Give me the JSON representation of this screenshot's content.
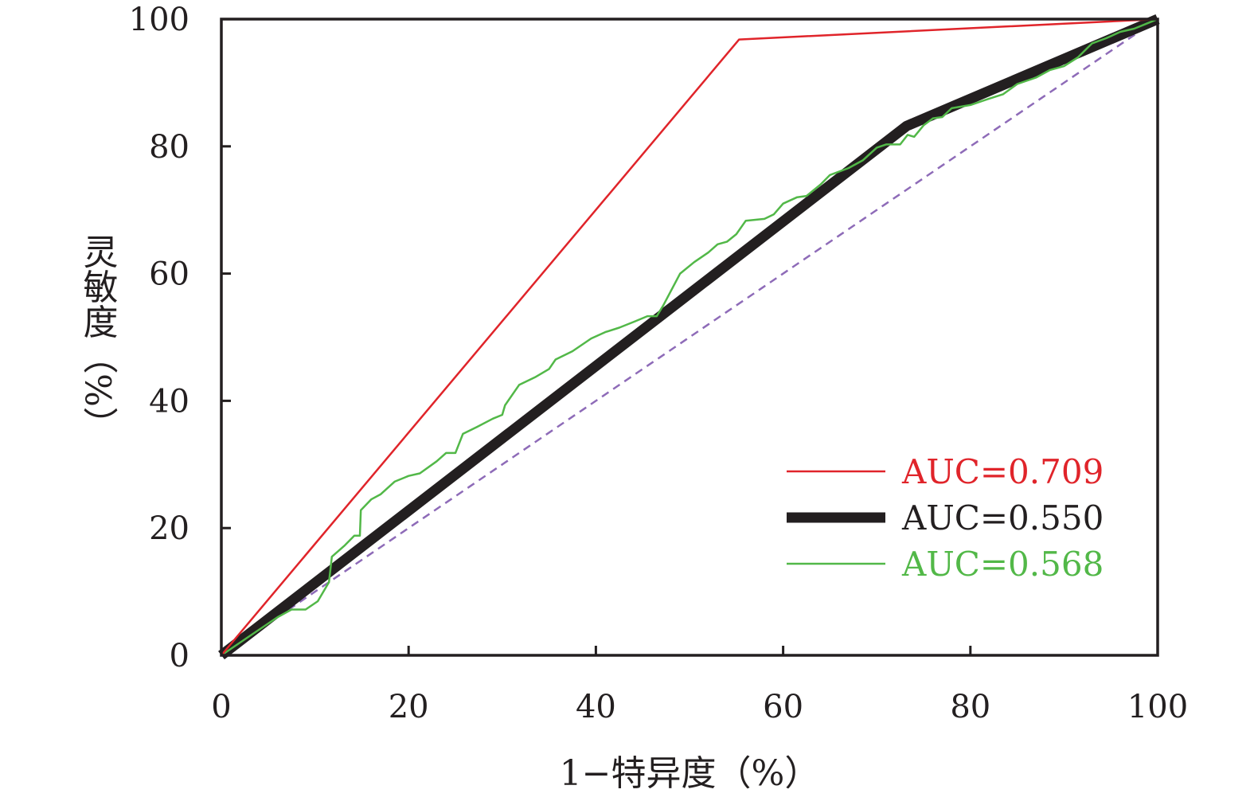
{
  "chart_data": {
    "type": "line",
    "xlabel": "1−特异度（%）",
    "ylabel": "灵敏度（%）",
    "xlim": [
      0,
      100
    ],
    "ylim": [
      0,
      100
    ],
    "xticks": [
      0,
      20,
      40,
      60,
      80,
      100
    ],
    "yticks": [
      0,
      20,
      40,
      60,
      80,
      100
    ],
    "grid": false,
    "legend_position": "bottom-right",
    "series": [
      {
        "name": "AUC=0.709",
        "color": "#e0242a",
        "points": [
          [
            0,
            0
          ],
          [
            55.3,
            96.8
          ],
          [
            100,
            100
          ]
        ]
      },
      {
        "name": "AUC=0.550",
        "color": "#231f20",
        "points": [
          [
            0,
            0
          ],
          [
            73.2,
            83.2
          ],
          [
            100,
            100
          ]
        ]
      },
      {
        "name": "AUC=0.568",
        "color": "#52b848",
        "points": [
          [
            0,
            0
          ],
          [
            3,
            3
          ],
          [
            6,
            6
          ],
          [
            7.5,
            7.2
          ],
          [
            9,
            7.2
          ],
          [
            10.3,
            8.5
          ],
          [
            11.5,
            11.5
          ],
          [
            11.8,
            15.5
          ],
          [
            13.2,
            17.3
          ],
          [
            14.2,
            18.8
          ],
          [
            14.8,
            18.8
          ],
          [
            14.9,
            22.8
          ],
          [
            16,
            24.5
          ],
          [
            17,
            25.3
          ],
          [
            18.5,
            27.3
          ],
          [
            20,
            28.2
          ],
          [
            21.2,
            28.6
          ],
          [
            23,
            30.5
          ],
          [
            24,
            31.8
          ],
          [
            25,
            31.8
          ],
          [
            25.8,
            34.8
          ],
          [
            27.3,
            35.9
          ],
          [
            29,
            37.2
          ],
          [
            30,
            37.8
          ],
          [
            30.3,
            39.3
          ],
          [
            31.8,
            42.5
          ],
          [
            33.5,
            43.7
          ],
          [
            35,
            45
          ],
          [
            35.7,
            46.5
          ],
          [
            37.5,
            47.8
          ],
          [
            39.5,
            49.8
          ],
          [
            41,
            50.8
          ],
          [
            42.5,
            51.5
          ],
          [
            44.2,
            52.5
          ],
          [
            45.5,
            53.3
          ],
          [
            46.5,
            53.3
          ],
          [
            47.2,
            55
          ],
          [
            49,
            60
          ],
          [
            50.5,
            61.8
          ],
          [
            52,
            63.3
          ],
          [
            53,
            64.6
          ],
          [
            54,
            65
          ],
          [
            55,
            66.2
          ],
          [
            56,
            68.3
          ],
          [
            58,
            68.6
          ],
          [
            59,
            69.3
          ],
          [
            60,
            71
          ],
          [
            61.5,
            72
          ],
          [
            62.5,
            72.2
          ],
          [
            64,
            74
          ],
          [
            65,
            75.5
          ],
          [
            67,
            76.6
          ],
          [
            68.5,
            77.8
          ],
          [
            70,
            79.8
          ],
          [
            71,
            80.3
          ],
          [
            72.5,
            80.3
          ],
          [
            73.3,
            81.8
          ],
          [
            74,
            81.5
          ],
          [
            75,
            83.3
          ],
          [
            76,
            84.4
          ],
          [
            77,
            84.6
          ],
          [
            78,
            86
          ],
          [
            80,
            86.5
          ],
          [
            82,
            87.5
          ],
          [
            83.5,
            88.2
          ],
          [
            85,
            89.8
          ],
          [
            87,
            90.8
          ],
          [
            88.5,
            92
          ],
          [
            90,
            92.6
          ],
          [
            91.5,
            94
          ],
          [
            93,
            96.2
          ],
          [
            94.5,
            97
          ],
          [
            96,
            98
          ],
          [
            97.5,
            98.5
          ],
          [
            99,
            99.4
          ],
          [
            100,
            100
          ]
        ]
      },
      {
        "name": "",
        "color": "#8e6bb8",
        "dashed": true,
        "points": [
          [
            0,
            0
          ],
          [
            100,
            100
          ]
        ]
      }
    ]
  }
}
